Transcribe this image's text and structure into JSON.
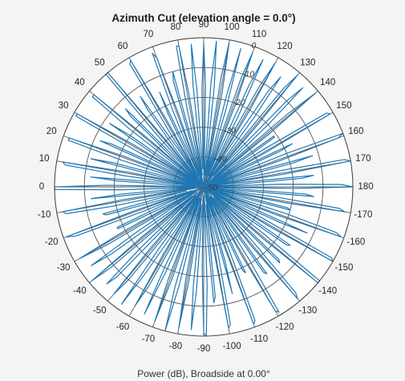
{
  "chart_data": {
    "type": "line",
    "subtype": "polar",
    "title": "Azimuth Cut (elevation angle = 0.0°)",
    "xlabel": "Power (dB), Broadside at 0.00°",
    "rlim": [
      -50,
      0
    ],
    "r_ticks": [
      "0",
      "-10",
      "-20",
      "-30",
      "-40",
      "-50"
    ],
    "r_tick_values": [
      0,
      -10,
      -20,
      -30,
      -40,
      -50
    ],
    "angle_ticks": [
      "0",
      "10",
      "20",
      "30",
      "40",
      "50",
      "60",
      "70",
      "80",
      "90",
      "100",
      "110",
      "120",
      "130",
      "140",
      "150",
      "160",
      "170",
      "180",
      "-170",
      "-160",
      "-150",
      "-140",
      "-130",
      "-120",
      "-110",
      "-100",
      "-90",
      "-80",
      "-70",
      "-60",
      "-50",
      "-40",
      "-30",
      "-20",
      "-10"
    ],
    "angle_tick_values": [
      0,
      10,
      20,
      30,
      40,
      50,
      60,
      70,
      80,
      90,
      100,
      110,
      120,
      130,
      140,
      150,
      160,
      170,
      180,
      -170,
      -160,
      -150,
      -140,
      -130,
      -120,
      -110,
      -100,
      -90,
      -80,
      -70,
      -60,
      -50,
      -40,
      -30,
      -20,
      -10
    ],
    "zero_direction": "left",
    "angle_direction": "clockwise",
    "grid": true,
    "series": [
      {
        "color": "#1f77b4",
        "x": [
          0,
          1,
          2,
          3,
          4,
          5,
          6,
          7,
          8,
          9,
          10,
          11,
          12,
          13,
          14,
          15,
          16,
          17,
          18,
          19,
          20,
          21,
          22,
          23,
          24,
          25,
          26,
          27,
          28,
          29,
          30,
          31,
          32,
          33,
          34,
          35,
          36,
          37,
          38,
          39,
          40,
          41,
          42,
          43,
          44,
          45,
          46,
          47,
          48,
          49,
          50,
          51,
          52,
          53,
          54,
          55,
          56,
          57,
          58,
          59,
          60,
          61,
          62,
          63,
          64,
          65,
          66,
          67,
          68,
          69,
          70,
          71,
          72,
          73,
          74,
          75,
          76,
          77,
          78,
          79,
          80,
          81,
          82,
          83,
          84,
          85,
          86,
          87,
          88,
          89,
          90,
          91,
          92,
          93,
          94,
          95,
          96,
          97,
          98,
          99,
          100,
          101,
          102,
          103,
          104,
          105,
          106,
          107,
          108,
          109,
          110,
          111,
          112,
          113,
          114,
          115,
          116,
          117,
          118,
          119,
          120,
          121,
          122,
          123,
          124,
          125,
          126,
          127,
          128,
          129,
          130,
          131,
          132,
          133,
          134,
          135,
          136,
          137,
          138,
          139,
          140,
          141,
          142,
          143,
          144,
          145,
          146,
          147,
          148,
          149,
          150,
          151,
          152,
          153,
          154,
          155,
          156,
          157,
          158,
          159,
          160,
          161,
          162,
          163,
          164,
          165,
          166,
          167,
          168,
          169,
          170,
          171,
          172,
          173,
          174,
          175,
          176,
          177,
          178,
          179,
          180,
          181,
          182,
          183,
          184,
          185,
          186,
          187,
          188,
          189,
          190,
          191,
          192,
          193,
          194,
          195,
          196,
          197,
          198,
          199,
          200,
          201,
          202,
          203,
          204,
          205,
          206,
          207,
          208,
          209,
          210,
          211,
          212,
          213,
          214,
          215,
          216,
          217,
          218,
          219,
          220,
          221,
          222,
          223,
          224,
          225,
          226,
          227,
          228,
          229,
          230,
          231,
          232,
          233,
          234,
          235,
          236,
          237,
          238,
          239,
          240,
          241,
          242,
          243,
          244,
          245,
          246,
          247,
          248,
          249,
          250,
          251,
          252,
          253,
          254,
          255,
          256,
          257,
          258,
          259,
          260,
          261,
          262,
          263,
          264,
          265,
          266,
          267,
          268,
          269,
          270,
          271,
          272,
          273,
          274,
          275,
          276,
          277,
          278,
          279,
          280,
          281,
          282,
          283,
          284,
          285,
          286,
          287,
          288,
          289,
          290,
          291,
          292,
          293,
          294,
          295,
          296,
          297,
          298,
          299,
          300,
          301,
          302,
          303,
          304,
          305,
          306,
          307,
          308,
          309,
          310,
          311,
          312,
          313,
          314,
          315,
          316,
          317,
          318,
          319,
          320,
          321,
          322,
          323,
          324,
          325,
          326,
          327,
          328,
          329,
          330,
          331,
          332,
          333,
          334,
          335,
          336,
          337,
          338,
          339,
          340,
          341,
          342,
          343,
          344,
          345,
          346,
          347,
          348,
          349,
          350,
          351,
          352,
          353,
          354,
          355,
          356,
          357,
          358,
          359,
          360
        ],
        "y": [
          0,
          -18,
          -50,
          -42,
          -21,
          -12,
          -35,
          -50,
          -23,
          -3,
          -2,
          -24,
          -50,
          -35,
          -11,
          -19,
          -44,
          -49,
          -21,
          -2,
          -2,
          -22,
          -48,
          -40,
          -12,
          -16,
          -42,
          -50,
          -26,
          -1,
          -1,
          -22,
          -49,
          -33,
          -12,
          -20,
          -49,
          -48,
          -18,
          -2,
          -2,
          -26,
          -50,
          -38,
          -16,
          -13,
          -39,
          -50,
          -28,
          0,
          0,
          -29,
          -50,
          -35,
          -18,
          -13,
          -35,
          -50,
          -29,
          -2,
          -1,
          -25,
          -46,
          -40,
          -23,
          -15,
          -39,
          -48,
          -22,
          -2,
          -4,
          -24,
          -48,
          -44,
          -13,
          -10,
          -41,
          -50,
          -23,
          -2,
          -2,
          -19,
          -43,
          -46,
          -16,
          -2,
          -17,
          -44,
          -44,
          -17,
          -2,
          -16,
          -47,
          -48,
          -15,
          -1,
          -16,
          -45,
          -46,
          -13,
          -1,
          -17,
          -43,
          -50,
          -19,
          -2,
          -23,
          -47,
          -39,
          -11,
          -2,
          -19,
          -46,
          -40,
          -13,
          -3,
          -23,
          -48,
          -34,
          -11,
          -2,
          -20,
          -47,
          -35,
          -11,
          -5,
          -21,
          -50,
          -37,
          -8,
          -1,
          -23,
          -45,
          -39,
          -10,
          -3,
          -20,
          -49,
          -39,
          -13,
          -1,
          -21,
          -50,
          -41,
          -21,
          -21,
          -38,
          -49,
          -26,
          -2,
          -1,
          -26,
          -49,
          -37,
          -17,
          -22,
          -46,
          -47,
          -20,
          0,
          -2,
          -23,
          -50,
          -36,
          -12,
          -19,
          -46,
          -48,
          -24,
          -2,
          0,
          -23,
          -50,
          -39,
          -13,
          -17,
          -41,
          -47,
          -24,
          -4,
          0,
          -20,
          -49,
          -40,
          -16,
          -13,
          -42,
          -48,
          -25,
          -4,
          -2,
          -22,
          -50,
          -37,
          -21,
          -20,
          -44,
          -50,
          -21,
          -3,
          -1,
          -24,
          -47,
          -37,
          -12,
          -21,
          -41,
          -49,
          -28,
          -1,
          0,
          -24,
          -49,
          -34,
          -15,
          -16,
          -39,
          -49,
          -25,
          0,
          0,
          -23,
          -49,
          -43,
          -15,
          -14,
          -43,
          -45,
          -26,
          -3,
          -1,
          -24,
          -49,
          -39,
          -14,
          -15,
          -45,
          -46,
          -21,
          -1,
          -2,
          -24,
          -50,
          -40,
          -18,
          -19,
          -40,
          -50,
          -28,
          -2,
          -1,
          -29,
          -49,
          -41,
          -24,
          -13,
          -40,
          -50,
          -26,
          -3,
          -2,
          -29,
          -44,
          -41,
          -13,
          -11,
          -38,
          -47,
          -17,
          0,
          -1,
          -22,
          -43,
          -47,
          -15,
          -2,
          -17,
          -43,
          -44,
          -18,
          -2,
          -19,
          -42,
          -46,
          -16,
          0,
          -15,
          -43,
          -48,
          -17,
          -2,
          -17,
          -46,
          -44,
          -19,
          -3,
          -21,
          -49,
          -35,
          -12,
          -4,
          -24,
          -49,
          -33,
          -15,
          -2,
          -24,
          -50,
          -34,
          -10,
          -3,
          -22,
          -46,
          -39,
          -8,
          -4,
          -21,
          -47,
          -37,
          -9,
          -1,
          -24,
          -45,
          -38,
          -12,
          -4,
          -23,
          -47,
          -38,
          -13,
          -2,
          -20,
          -47,
          -37,
          -18,
          -18,
          -37,
          -49,
          -28,
          -4,
          -1,
          -25,
          -46,
          -35,
          -16,
          -15,
          -38,
          -44,
          -19,
          -3,
          -2,
          -23,
          -49,
          -35,
          -12,
          -22,
          -47,
          -46,
          -22,
          0,
          0
        ]
      }
    ]
  }
}
